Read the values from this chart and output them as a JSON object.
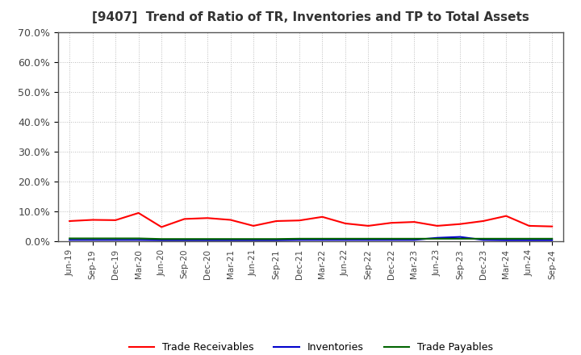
{
  "title": "[9407]  Trend of Ratio of TR, Inventories and TP to Total Assets",
  "x_labels": [
    "Jun-19",
    "Sep-19",
    "Dec-19",
    "Mar-20",
    "Jun-20",
    "Sep-20",
    "Dec-20",
    "Mar-21",
    "Jun-21",
    "Sep-21",
    "Dec-21",
    "Mar-22",
    "Jun-22",
    "Sep-22",
    "Dec-22",
    "Mar-23",
    "Jun-23",
    "Sep-23",
    "Dec-23",
    "Mar-24",
    "Jun-24",
    "Sep-24"
  ],
  "trade_receivables": [
    6.8,
    7.2,
    7.1,
    9.5,
    4.8,
    7.5,
    7.8,
    7.2,
    5.2,
    6.8,
    7.0,
    8.2,
    6.0,
    5.2,
    6.2,
    6.5,
    5.2,
    5.8,
    6.8,
    8.5,
    5.2,
    5.0
  ],
  "inventories": [
    0.5,
    0.5,
    0.5,
    0.5,
    0.4,
    0.4,
    0.4,
    0.4,
    0.4,
    0.4,
    0.5,
    0.5,
    0.5,
    0.5,
    0.5,
    0.5,
    1.2,
    1.5,
    0.5,
    0.4,
    0.4,
    0.4
  ],
  "trade_payables": [
    1.0,
    1.0,
    1.0,
    1.0,
    0.8,
    0.8,
    0.8,
    0.8,
    0.8,
    0.8,
    0.9,
    0.9,
    0.9,
    0.9,
    0.9,
    0.9,
    0.9,
    0.9,
    0.9,
    0.9,
    0.9,
    0.9
  ],
  "color_tr": "#FF0000",
  "color_inv": "#0000CC",
  "color_tp": "#006400",
  "ylim": [
    0,
    70
  ],
  "yticks": [
    0,
    10,
    20,
    30,
    40,
    50,
    60,
    70
  ],
  "ytick_labels": [
    "0.0%",
    "10.0%",
    "20.0%",
    "30.0%",
    "40.0%",
    "50.0%",
    "60.0%",
    "70.0%"
  ],
  "bg_color": "#FFFFFF",
  "grid_color": "#BBBBBB",
  "title_color": "#333333",
  "legend_labels": [
    "Trade Receivables",
    "Inventories",
    "Trade Payables"
  ]
}
